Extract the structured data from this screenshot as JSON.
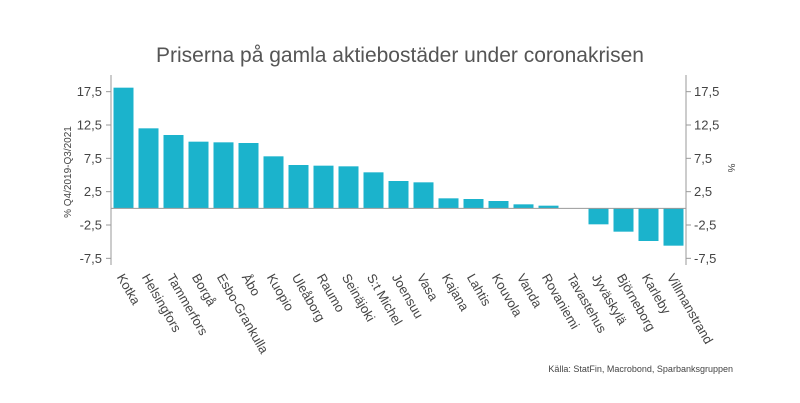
{
  "chart_data": {
    "type": "bar",
    "title": "Priserna på gamla aktiebostäder under coronakrisen",
    "ylabel_left": "% Q4/2019-Q3/2021",
    "ylabel_right": "%",
    "source": "Källa: StatFin, Macrobond, Sparbanksgruppen",
    "ylim": [
      -8.5,
      20
    ],
    "yticks": [
      -7.5,
      -2.5,
      2.5,
      7.5,
      12.5,
      17.5
    ],
    "ytick_labels": [
      "-7,5",
      "-2,5",
      "2,5",
      "7,5",
      "12,5",
      "17,5"
    ],
    "grid": false,
    "bar_color": "#1bb3cc",
    "categories": [
      "Kotka",
      "Helsingfors",
      "Tammerfors",
      "Borgå",
      "Esbo-Grankulla",
      "Åbo",
      "Kuopio",
      "Uleåborg",
      "Raumo",
      "Seinäjoki",
      "S:t Michel",
      "Joensuu",
      "Vasa",
      "Kajana",
      "Lahtis",
      "Kouvola",
      "Vanda",
      "Rovaniemi",
      "Tavastehus",
      "Jyväskylä",
      "Björneborg",
      "Karleby",
      "Villmanstrand"
    ],
    "values": [
      18.1,
      12.0,
      11.0,
      10.0,
      9.9,
      9.8,
      7.8,
      6.5,
      6.4,
      6.3,
      5.4,
      4.1,
      3.9,
      1.5,
      1.4,
      1.1,
      0.6,
      0.4,
      0.0,
      -2.4,
      -3.5,
      -4.9,
      -5.6
    ]
  }
}
